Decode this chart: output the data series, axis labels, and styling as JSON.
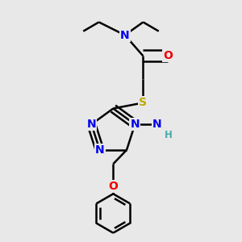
{
  "background_color": "#e8e8e8",
  "bond_color": "#000000",
  "bond_width": 1.8,
  "atom_colors": {
    "N": "#0000ee",
    "O": "#ee0000",
    "S": "#bbaa00",
    "C": "#000000",
    "H_teal": "#4aabab"
  },
  "font_size_atoms": 10,
  "font_size_h": 8.5
}
